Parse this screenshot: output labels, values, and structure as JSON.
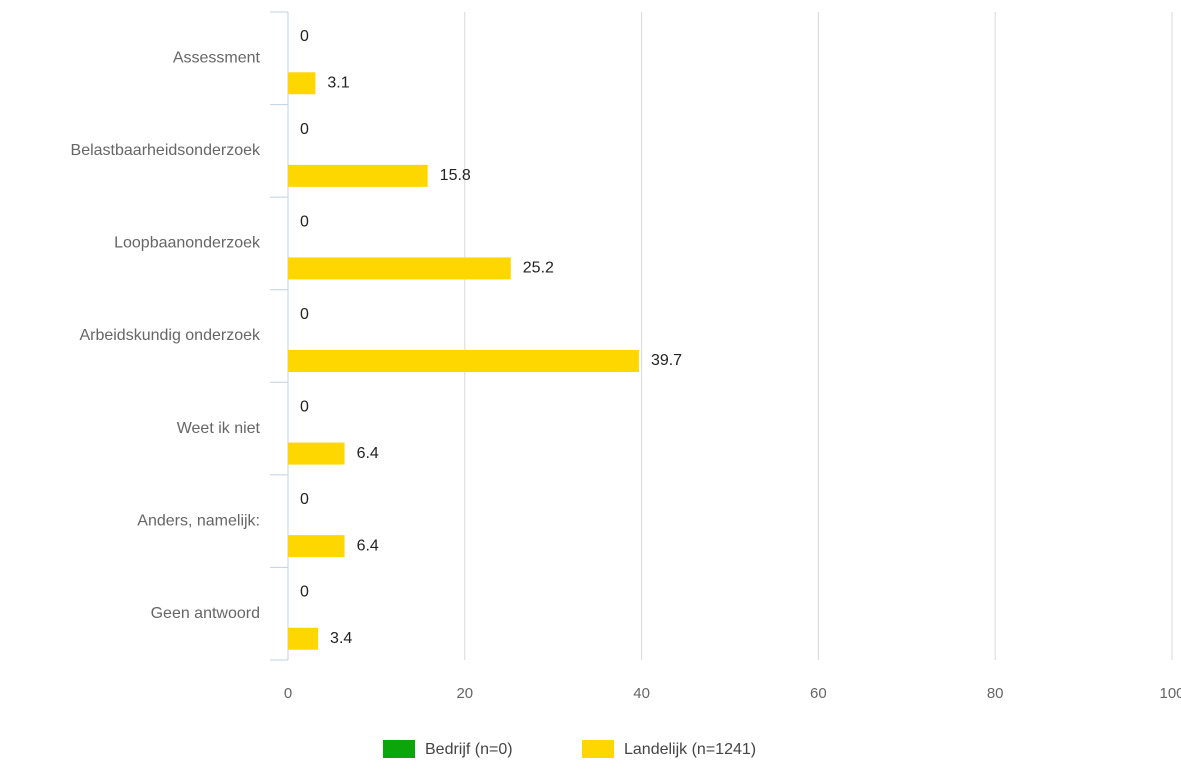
{
  "chart_data": {
    "type": "bar",
    "orientation": "horizontal",
    "categories": [
      "Assessment",
      "Belastbaarheidsonderzoek",
      "Loopbaanonderzoek",
      "Arbeidskundig onderzoek",
      "Weet ik niet",
      "Anders, namelijk:",
      "Geen antwoord"
    ],
    "series": [
      {
        "name": "Bedrijf (n=0)",
        "color": "#0aa60a",
        "values": [
          0,
          0,
          0,
          0,
          0,
          0,
          0
        ],
        "labels": [
          "0",
          "0",
          "0",
          "0",
          "0",
          "0",
          "0"
        ]
      },
      {
        "name": "Landelijk (n=1241)",
        "color": "#ffd700",
        "values": [
          3.1,
          15.8,
          25.2,
          39.7,
          6.4,
          6.4,
          3.4
        ],
        "labels": [
          "3.1",
          "15.8",
          "25.2",
          "39.7",
          "6.4",
          "6.4",
          "3.4"
        ]
      }
    ],
    "xlim": [
      0,
      100
    ],
    "xticks": [
      0,
      20,
      40,
      60,
      80,
      100
    ],
    "xtick_labels": [
      "0",
      "20",
      "40",
      "60",
      "80",
      "100"
    ],
    "grid": true,
    "legend_position": "bottom"
  }
}
